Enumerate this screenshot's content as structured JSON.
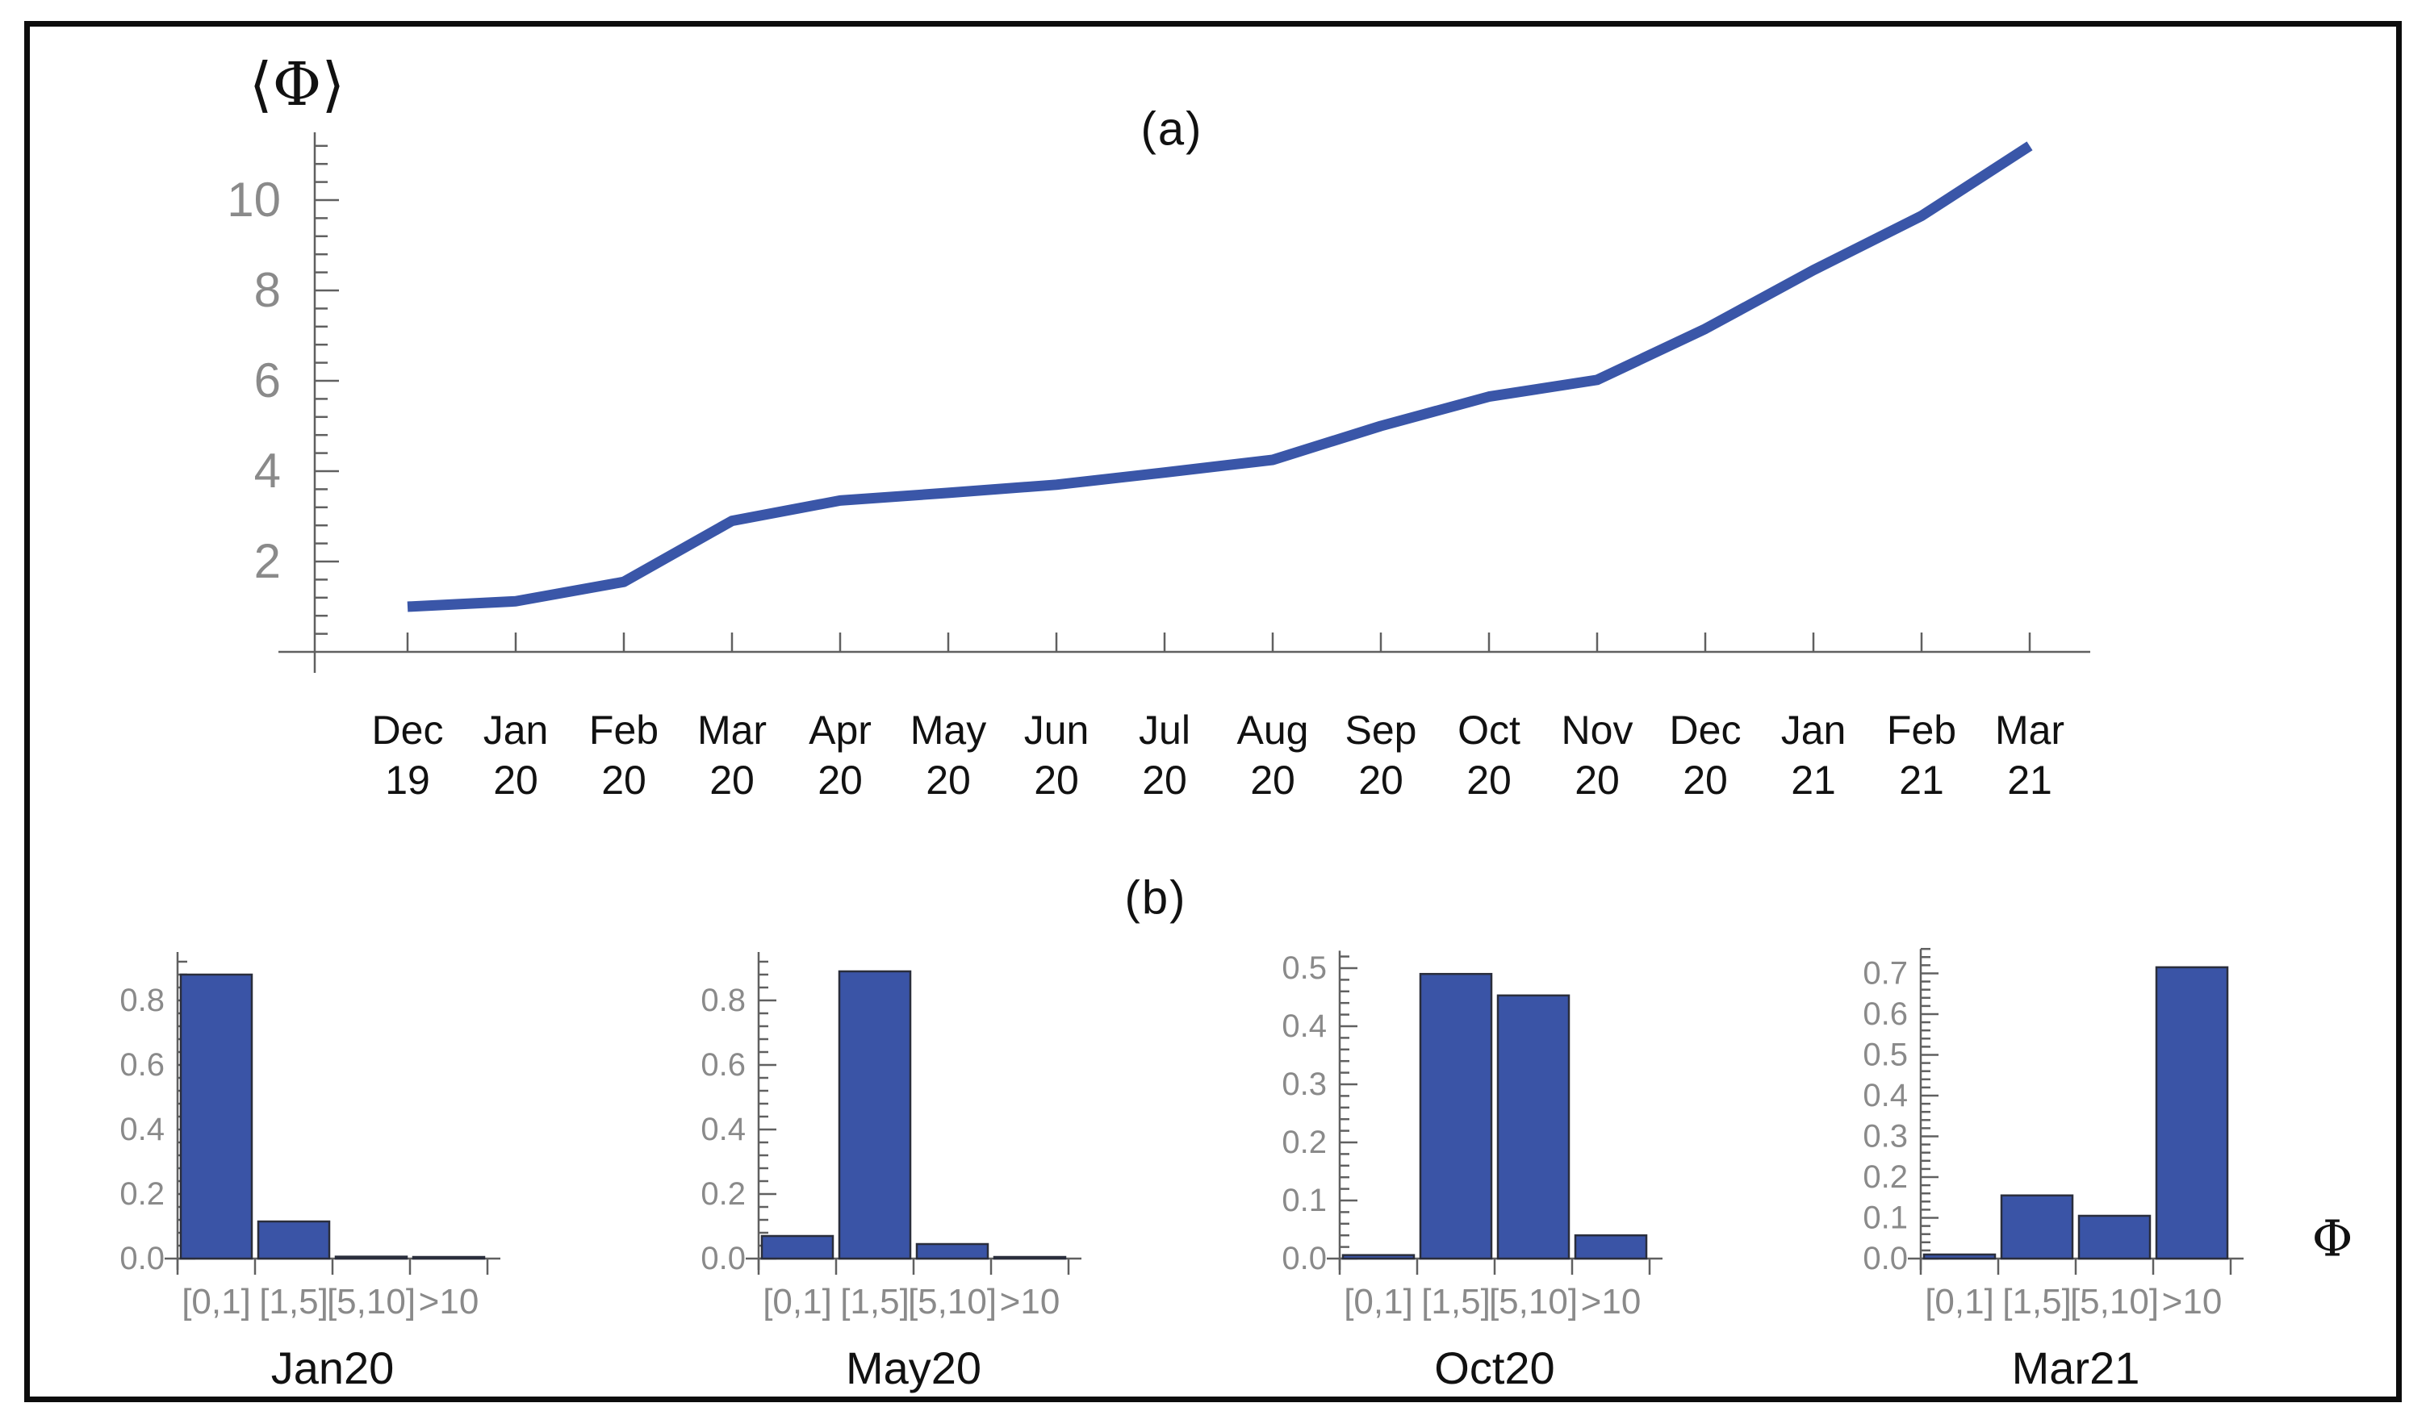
{
  "panels": {
    "a": "(a)",
    "b": "(b)"
  },
  "colors": {
    "line_blue": "#3a56a8",
    "bar_blue": "#3a54a6",
    "bar_edge": "#2a2e3c",
    "axis_gray": "#606060",
    "tick_label_gray": "#8a8a8a",
    "text_black": "#111111"
  },
  "chart_data": [
    {
      "id": "mean-phi-timeseries",
      "type": "line",
      "panel": "(a)",
      "ylabel": "⟨Φ⟩",
      "categories": [
        "Dec 19",
        "Jan 20",
        "Feb 20",
        "Mar 20",
        "Apr 20",
        "May 20",
        "Jun 20",
        "Jul 20",
        "Aug 20",
        "Sep 20",
        "Oct 20",
        "Nov 20",
        "Dec 20",
        "Jan 21",
        "Feb 21",
        "Mar 21"
      ],
      "values": [
        1.0,
        1.12,
        1.55,
        2.9,
        3.35,
        3.52,
        3.7,
        3.97,
        4.25,
        5.0,
        5.65,
        6.02,
        7.15,
        8.45,
        9.65,
        11.2
      ],
      "yticks": [
        "2",
        "4",
        "6",
        "8",
        "10"
      ],
      "ylim": [
        0,
        11.5
      ],
      "grid": false,
      "legend": "none"
    },
    {
      "id": "hist-jan20",
      "type": "bar",
      "title": "Jan20",
      "categories": [
        "[0,1]",
        "[1,5]",
        "[5,10]",
        ">10"
      ],
      "values": [
        0.88,
        0.115,
        0.006,
        0.005
      ],
      "yticks": [
        "0.0",
        "0.2",
        "0.4",
        "0.6",
        "0.8"
      ],
      "ylim": [
        0,
        0.95
      ]
    },
    {
      "id": "hist-may20",
      "type": "bar",
      "title": "May20",
      "categories": [
        "[0,1]",
        "[1,5]",
        "[5,10]",
        ">10"
      ],
      "values": [
        0.07,
        0.89,
        0.045,
        0.003
      ],
      "yticks": [
        "0.0",
        "0.2",
        "0.4",
        "0.6",
        "0.8"
      ],
      "ylim": [
        0,
        0.95
      ]
    },
    {
      "id": "hist-oct20",
      "type": "bar",
      "title": "Oct20",
      "categories": [
        "[0,1]",
        "[1,5]",
        "[5,10]",
        ">10"
      ],
      "values": [
        0.006,
        0.49,
        0.453,
        0.04
      ],
      "yticks": [
        "0.0",
        "0.1",
        "0.2",
        "0.3",
        "0.4",
        "0.5"
      ],
      "ylim": [
        0,
        0.53
      ]
    },
    {
      "id": "hist-mar21",
      "type": "bar",
      "title": "Mar21",
      "categories": [
        "[0,1]",
        "[1,5]",
        "[5,10]",
        ">10"
      ],
      "values": [
        0.01,
        0.155,
        0.105,
        0.715
      ],
      "yticks": [
        "0.0",
        "0.1",
        "0.2",
        "0.3",
        "0.4",
        "0.5",
        "0.6",
        "0.7"
      ],
      "ylim": [
        0,
        0.76
      ],
      "xlabel": "Φ"
    }
  ]
}
